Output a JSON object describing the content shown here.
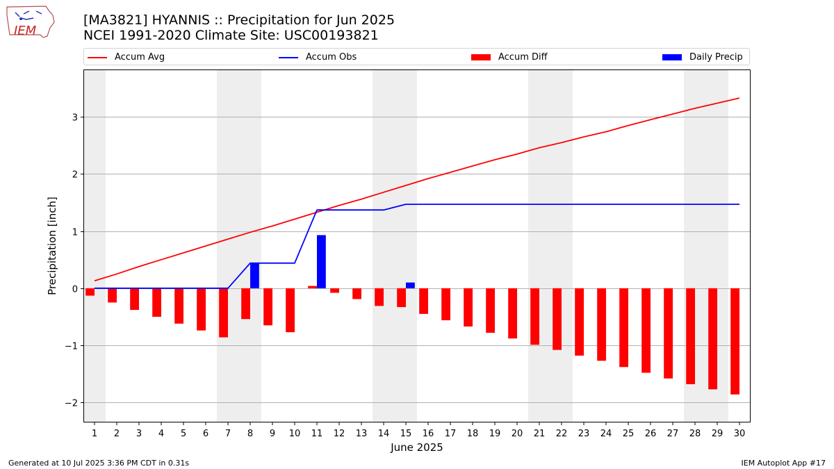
{
  "header": {
    "title_line1": "[MA3821] HYANNIS :: Precipitation for Jun 2025",
    "title_line2": "NCEI 1991-2020 Climate Site: USC00193821"
  },
  "logo": {
    "text": "IEM"
  },
  "footer": {
    "left": "Generated at 10 Jul 2025 3:36 PM CDT in 0.31s",
    "right": "IEM Autoplot App #17"
  },
  "colors": {
    "accum_avg": "#ff0000",
    "accum_obs": "#0000ff",
    "accum_diff": "#ff0000",
    "daily_precip": "#0000ff",
    "weekend_shade": "#eeeeee",
    "grid": "#b0b0b0"
  },
  "chart_data": {
    "type": "bar",
    "xlabel": "June 2025",
    "ylabel": "Precipitation [inch]",
    "ylim": [
      -2.35,
      3.83
    ],
    "yticks": [
      -2,
      -1,
      0,
      1,
      2,
      3
    ],
    "ytick_labels": [
      "−2",
      "−1",
      "0",
      "1",
      "2",
      "3"
    ],
    "grid": true,
    "legend_position": "top",
    "x": [
      1,
      2,
      3,
      4,
      5,
      6,
      7,
      8,
      9,
      10,
      11,
      12,
      13,
      14,
      15,
      16,
      17,
      18,
      19,
      20,
      21,
      22,
      23,
      24,
      25,
      26,
      27,
      28,
      29,
      30
    ],
    "x_tick_labels": [
      "1",
      "2",
      "3",
      "4",
      "5",
      "6",
      "7",
      "8",
      "9",
      "10",
      "11",
      "12",
      "13",
      "14",
      "15",
      "16",
      "17",
      "18",
      "19",
      "20",
      "21",
      "22",
      "23",
      "24",
      "25",
      "26",
      "27",
      "28",
      "29",
      "30"
    ],
    "weekend_days": [
      1,
      7,
      8,
      14,
      15,
      21,
      22,
      28,
      29
    ],
    "series": [
      {
        "name": "Accum Avg",
        "kind": "line",
        "values": [
          0.13,
          0.25,
          0.38,
          0.5,
          0.62,
          0.74,
          0.86,
          0.98,
          1.09,
          1.21,
          1.33,
          1.45,
          1.56,
          1.68,
          1.8,
          1.92,
          2.03,
          2.14,
          2.25,
          2.35,
          2.46,
          2.55,
          2.65,
          2.74,
          2.85,
          2.95,
          3.05,
          3.15,
          3.24,
          3.33
        ]
      },
      {
        "name": "Accum Obs",
        "kind": "line",
        "values": [
          0,
          0,
          0,
          0,
          0,
          0,
          0,
          0.44,
          0.44,
          0.44,
          1.37,
          1.37,
          1.37,
          1.37,
          1.47,
          1.47,
          1.47,
          1.47,
          1.47,
          1.47,
          1.47,
          1.47,
          1.47,
          1.47,
          1.47,
          1.47,
          1.47,
          1.47,
          1.47,
          1.47
        ]
      },
      {
        "name": "Accum Diff",
        "kind": "bar",
        "values": [
          -0.13,
          -0.25,
          -0.38,
          -0.5,
          -0.62,
          -0.74,
          -0.86,
          -0.54,
          -0.65,
          -0.77,
          0.04,
          -0.08,
          -0.19,
          -0.31,
          -0.33,
          -0.45,
          -0.56,
          -0.67,
          -0.78,
          -0.88,
          -0.99,
          -1.08,
          -1.18,
          -1.27,
          -1.38,
          -1.48,
          -1.58,
          -1.68,
          -1.77,
          -1.86
        ]
      },
      {
        "name": "Daily Precip",
        "kind": "bar",
        "values": [
          0,
          0,
          0,
          0,
          0,
          0,
          0,
          0.44,
          0,
          0,
          0.93,
          0,
          0,
          0,
          0.1,
          0,
          0,
          0,
          0,
          0,
          0,
          0,
          0,
          0,
          0,
          0,
          0,
          0,
          0,
          0
        ]
      }
    ]
  }
}
